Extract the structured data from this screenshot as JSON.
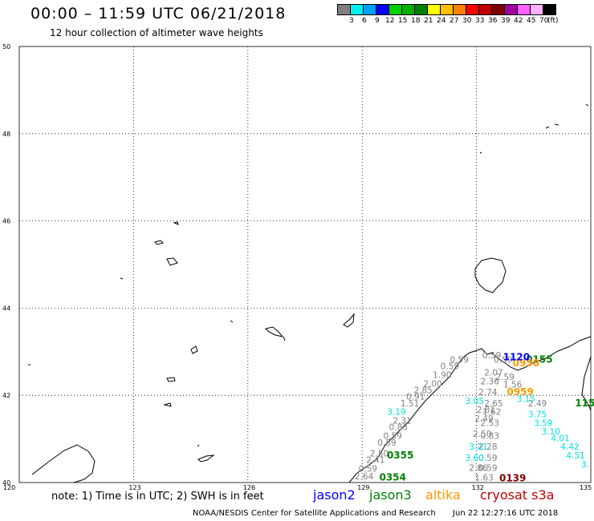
{
  "title": "00:00 – 11:59 UTC 06/21/2018",
  "subtitle": "12 hour collection of altimeter wave heights",
  "legend": {
    "colors": [
      "#808080",
      "#00f0f0",
      "#00a0ff",
      "#0000ff",
      "#00d000",
      "#00b000",
      "#008000",
      "#ffff00",
      "#ffc000",
      "#ff8000",
      "#ff0000",
      "#c00000",
      "#800000",
      "#a000a0",
      "#ff60ff",
      "#ffb0ff",
      "#000000"
    ],
    "labels": [
      "3",
      "6",
      "9",
      "12",
      "15",
      "18",
      "21",
      "24",
      "27",
      "30",
      "33",
      "36",
      "39",
      "42",
      "45",
      "70",
      "(ft)"
    ]
  },
  "map": {
    "lon_ticks": [
      "120",
      "123",
      "126",
      "129",
      "132",
      "135"
    ],
    "lat_ticks": [
      "40",
      "42",
      "44",
      "46",
      "48",
      "50"
    ],
    "lon_range": [
      120,
      135
    ],
    "lat_range": [
      40,
      50
    ],
    "tracks": [
      {
        "name": "grey-left",
        "color": "#808080",
        "points": [
          {
            "v": "0.59",
            "lon": 131.55,
            "lat": 42.75
          },
          {
            "v": "0.59",
            "lon": 131.3,
            "lat": 42.6
          },
          {
            "v": "1.90",
            "lon": 131.1,
            "lat": 42.4
          },
          {
            "v": "2.00",
            "lon": 130.85,
            "lat": 42.2
          },
          {
            "v": "2.85",
            "lon": 130.6,
            "lat": 42.05
          },
          {
            "v": "0.91",
            "lon": 130.4,
            "lat": 41.9
          },
          {
            "v": "1.51",
            "lon": 130.25,
            "lat": 41.75
          },
          {
            "v": "2.31",
            "lon": 130.05,
            "lat": 41.35
          },
          {
            "v": "0.83",
            "lon": 129.95,
            "lat": 41.2
          },
          {
            "v": "0.59",
            "lon": 129.8,
            "lat": 41.0
          },
          {
            "v": "0.59",
            "lon": 129.65,
            "lat": 40.85
          },
          {
            "v": "2.50",
            "lon": 129.45,
            "lat": 40.6
          },
          {
            "v": "2.41",
            "lon": 129.35,
            "lat": 40.45
          },
          {
            "v": "0.59",
            "lon": 129.15,
            "lat": 40.25
          },
          {
            "v": "2.64",
            "lon": 129.05,
            "lat": 40.07
          }
        ]
      },
      {
        "name": "grey-right",
        "color": "#808080",
        "points": [
          {
            "v": "0.59",
            "lon": 132.4,
            "lat": 42.85
          },
          {
            "v": "0.59",
            "lon": 132.7,
            "lat": 42.75
          },
          {
            "v": "2.07",
            "lon": 132.45,
            "lat": 42.45
          },
          {
            "v": "2.59",
            "lon": 132.75,
            "lat": 42.35
          },
          {
            "v": "2.36",
            "lon": 132.35,
            "lat": 42.25
          },
          {
            "v": "1.56",
            "lon": 132.95,
            "lat": 42.18
          },
          {
            "v": "2.74",
            "lon": 132.3,
            "lat": 42.0
          },
          {
            "v": "2.65",
            "lon": 132.45,
            "lat": 41.75
          },
          {
            "v": "2.81",
            "lon": 132.25,
            "lat": 41.6
          },
          {
            "v": "1.62",
            "lon": 132.4,
            "lat": 41.55
          },
          {
            "v": "2.49",
            "lon": 132.2,
            "lat": 41.4
          },
          {
            "v": "2.53",
            "lon": 132.35,
            "lat": 41.3
          },
          {
            "v": "2.50",
            "lon": 132.15,
            "lat": 41.05
          },
          {
            "v": "0.83",
            "lon": 132.35,
            "lat": 41.0
          },
          {
            "v": "2.28",
            "lon": 132.3,
            "lat": 40.75
          },
          {
            "v": "0.59",
            "lon": 132.3,
            "lat": 40.5
          },
          {
            "v": "2.86",
            "lon": 132.05,
            "lat": 40.27
          },
          {
            "v": "0.59",
            "lon": 132.3,
            "lat": 40.27
          },
          {
            "v": "1.63",
            "lon": 132.2,
            "lat": 40.05
          },
          {
            "v": "2.49",
            "lon": 133.6,
            "lat": 41.75
          }
        ]
      },
      {
        "name": "cyan-left",
        "color": "#00e0e0",
        "points": [
          {
            "v": "3.05",
            "lon": 131.95,
            "lat": 41.8
          },
          {
            "v": "3.19",
            "lon": 129.9,
            "lat": 41.55
          },
          {
            "v": "3.21",
            "lon": 132.05,
            "lat": 40.75
          },
          {
            "v": "3.60",
            "lon": 131.95,
            "lat": 40.5
          }
        ]
      },
      {
        "name": "cyan-right",
        "color": "#00e0e0",
        "points": [
          {
            "v": "3.15",
            "lon": 133.3,
            "lat": 41.85
          },
          {
            "v": "3.75",
            "lon": 133.6,
            "lat": 41.5
          },
          {
            "v": "3.59",
            "lon": 133.75,
            "lat": 41.3
          },
          {
            "v": "3.10",
            "lon": 133.95,
            "lat": 41.1
          },
          {
            "v": "4.01",
            "lon": 134.2,
            "lat": 40.95
          },
          {
            "v": "4.42",
            "lon": 134.45,
            "lat": 40.75
          },
          {
            "v": "4.51",
            "lon": 134.6,
            "lat": 40.55
          },
          {
            "v": "3.",
            "lon": 134.85,
            "lat": 40.35
          }
        ]
      }
    ],
    "times": [
      {
        "t": "0355",
        "color": "#008000",
        "lon": 130.0,
        "lat": 40.55
      },
      {
        "t": "0354",
        "color": "#008000",
        "lon": 129.8,
        "lat": 40.05
      },
      {
        "t": "0155",
        "color": "#008000",
        "lon": 133.65,
        "lat": 42.75
      },
      {
        "t": "115",
        "color": "#008000",
        "lon": 134.85,
        "lat": 41.75
      },
      {
        "t": "0958",
        "color": "#ff9900",
        "lon": 133.3,
        "lat": 42.67
      },
      {
        "t": "0959",
        "color": "#ff9900",
        "lon": 133.15,
        "lat": 42.0
      },
      {
        "t": "0139",
        "color": "#800000",
        "lon": 132.95,
        "lat": 40.03
      },
      {
        "t": "1120",
        "color": "#0000ff",
        "lon": 133.05,
        "lat": 42.8
      }
    ]
  },
  "note": "note: 1) Time is in UTC; 2) SWH is in feet",
  "satellites": [
    {
      "name": "jason2",
      "color": "#0000ff"
    },
    {
      "name": "jason3",
      "color": "#008000"
    },
    {
      "name": "altika",
      "color": "#ff9900"
    },
    {
      "name": "cryosat s3a",
      "color": "#c00000"
    }
  ],
  "footer": {
    "credit": "NOAA/NESDIS Center for Satellite Applications and Research",
    "timestamp": "Jun 22 12:27:16 UTC 2018"
  }
}
